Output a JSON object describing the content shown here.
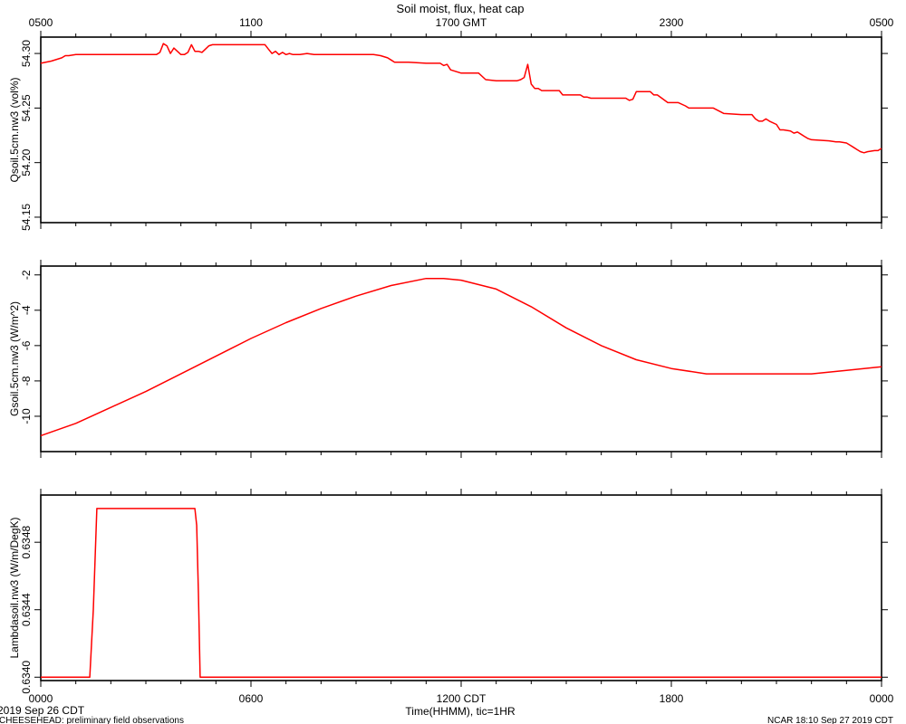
{
  "title": "Soil moist, flux, heat cap",
  "top_axis": {
    "ticks": [
      {
        "h": 0,
        "label": "0500"
      },
      {
        "h": 6,
        "label": "1100"
      },
      {
        "h": 12,
        "label": "1700 GMT"
      },
      {
        "h": 18,
        "label": "2300"
      },
      {
        "h": 24,
        "label": "0500"
      }
    ]
  },
  "bottom_axis": {
    "ticks": [
      {
        "h": 0,
        "label": "0000"
      },
      {
        "h": 6,
        "label": "0600"
      },
      {
        "h": 12,
        "label": "1200 CDT"
      },
      {
        "h": 18,
        "label": "1800"
      },
      {
        "h": 24,
        "label": "0000"
      }
    ],
    "xlabel": "Time(HHMM), tic=1HR"
  },
  "footer": {
    "date": "2019 Sep 26 CDT",
    "project": "CHEESEHEAD: preliminary field observations",
    "stamp": "NCAR 18:10 Sep 27 2019 CDT"
  },
  "colors": {
    "series": "#ff0000",
    "axes": "#000000"
  },
  "chart_data": [
    {
      "type": "line",
      "ylabel": "Qsoil.5cm.nw3 (vol%)",
      "ylim": [
        54.145,
        54.315
      ],
      "yticks": [
        {
          "v": 54.15,
          "label": "54.15"
        },
        {
          "v": 54.2,
          "label": "54.20"
        },
        {
          "v": 54.25,
          "label": "54.25"
        },
        {
          "v": 54.3,
          "label": "54.30"
        }
      ],
      "x_unit": "hours since 0000 CDT",
      "x": [
        0,
        0.3,
        0.6,
        0.7,
        0.8,
        1.0,
        1.2,
        1.4,
        1.6,
        1.8,
        2.0,
        2.5,
        3.0,
        3.3,
        3.4,
        3.5,
        3.6,
        3.7,
        3.8,
        3.9,
        4.0,
        4.1,
        4.2,
        4.3,
        4.4,
        4.5,
        4.6,
        4.7,
        4.8,
        4.9,
        5.0,
        5.2,
        5.5,
        6.0,
        6.4,
        6.5,
        6.6,
        6.7,
        6.8,
        6.9,
        7.0,
        7.1,
        7.2,
        7.4,
        7.6,
        7.8,
        8.0,
        8.5,
        9.0,
        9.5,
        9.7,
        9.9,
        10.0,
        10.1,
        10.2,
        10.5,
        11.0,
        11.4,
        11.5,
        11.6,
        11.7,
        12.0,
        12.3,
        12.4,
        12.5,
        12.7,
        13.0,
        13.6,
        13.7,
        13.8,
        13.9,
        14.0,
        14.1,
        14.2,
        14.3,
        14.5,
        14.8,
        14.9,
        15.0,
        15.4,
        15.5,
        15.6,
        15.7,
        16.0,
        16.7,
        16.8,
        16.9,
        17.0,
        17.4,
        17.5,
        17.6,
        17.9,
        18.0,
        18.2,
        18.4,
        18.5,
        19.0,
        19.2,
        19.5,
        20.0,
        20.3,
        20.4,
        20.5,
        20.6,
        20.7,
        20.8,
        21.0,
        21.1,
        21.2,
        21.4,
        21.5,
        21.6,
        21.7,
        21.8,
        21.9,
        22.0,
        22.5,
        22.7,
        22.8,
        23.0,
        23.1,
        23.2,
        23.3,
        23.4,
        23.5,
        23.6,
        23.8,
        23.9,
        24.0
      ],
      "y": [
        54.291,
        54.293,
        54.296,
        54.298,
        54.298,
        54.299,
        54.299,
        54.299,
        54.299,
        54.299,
        54.299,
        54.299,
        54.299,
        54.299,
        54.301,
        54.309,
        54.307,
        54.3,
        54.305,
        54.302,
        54.299,
        54.299,
        54.301,
        54.308,
        54.302,
        54.302,
        54.301,
        54.304,
        54.307,
        54.308,
        54.308,
        54.308,
        54.308,
        54.308,
        54.308,
        54.304,
        54.3,
        54.302,
        54.299,
        54.301,
        54.299,
        54.3,
        54.299,
        54.299,
        54.3,
        54.299,
        54.299,
        54.299,
        54.299,
        54.299,
        54.298,
        54.296,
        54.294,
        54.292,
        54.292,
        54.292,
        54.291,
        54.291,
        54.289,
        54.29,
        54.285,
        54.282,
        54.282,
        54.282,
        54.282,
        54.276,
        54.275,
        54.275,
        54.276,
        54.278,
        54.29,
        54.272,
        54.268,
        54.268,
        54.266,
        54.266,
        54.266,
        54.262,
        54.262,
        54.262,
        54.26,
        54.26,
        54.259,
        54.259,
        54.259,
        54.257,
        54.258,
        54.265,
        54.265,
        54.262,
        54.262,
        54.255,
        54.255,
        54.255,
        54.252,
        54.25,
        54.25,
        54.25,
        54.245,
        54.244,
        54.244,
        54.24,
        54.238,
        54.238,
        54.24,
        54.238,
        54.235,
        54.23,
        54.23,
        54.229,
        54.227,
        54.228,
        54.226,
        54.224,
        54.222,
        54.221,
        54.22,
        54.219,
        54.219,
        54.218,
        54.216,
        54.214,
        54.212,
        54.21,
        54.209,
        54.21,
        54.211,
        54.211,
        54.213
      ],
      "note": "y values from visual estimate; spikes approximated"
    },
    {
      "type": "line",
      "ylabel": "Gsoil.5cm.nw3 (W/m^2)",
      "ylim": [
        -12,
        -1.5
      ],
      "yticks": [
        {
          "v": -2,
          "label": "-2"
        },
        {
          "v": -4,
          "label": "-4"
        },
        {
          "v": -6,
          "label": "-6"
        },
        {
          "v": -8,
          "label": "-8"
        },
        {
          "v": -10,
          "label": "-10"
        }
      ],
      "x_unit": "hours since 0000 CDT",
      "x": [
        0,
        1,
        2,
        3,
        4,
        5,
        6,
        7,
        8,
        9,
        10,
        11,
        11.5,
        12,
        13,
        14,
        15,
        16,
        17,
        18,
        19,
        19.5,
        20,
        21,
        22,
        23,
        24
      ],
      "y": [
        -11.1,
        -10.4,
        -9.5,
        -8.6,
        -7.6,
        -6.6,
        -5.6,
        -4.7,
        -3.9,
        -3.2,
        -2.6,
        -2.2,
        -2.2,
        -2.3,
        -2.8,
        -3.8,
        -5.0,
        -6.0,
        -6.8,
        -7.3,
        -7.6,
        -7.6,
        -7.6,
        -7.6,
        -7.6,
        -7.4,
        -7.2
      ]
    },
    {
      "type": "line",
      "ylabel": "Lambdasoil.nw3 (W/m/DegK)",
      "ylim": [
        0.63398,
        0.63508
      ],
      "yticks": [
        {
          "v": 0.634,
          "label": "0.6340"
        },
        {
          "v": 0.6344,
          "label": "0.6344"
        },
        {
          "v": 0.6348,
          "label": "0.6348"
        }
      ],
      "x_unit": "hours since 0000 CDT",
      "x": [
        0,
        1.4,
        1.5,
        1.6,
        4.4,
        4.45,
        4.5,
        4.55,
        24
      ],
      "y": [
        0.634,
        0.634,
        0.6344,
        0.635,
        0.635,
        0.6349,
        0.6345,
        0.634,
        0.634
      ],
      "note": "top step level estimated above 0.6348 tick"
    }
  ]
}
